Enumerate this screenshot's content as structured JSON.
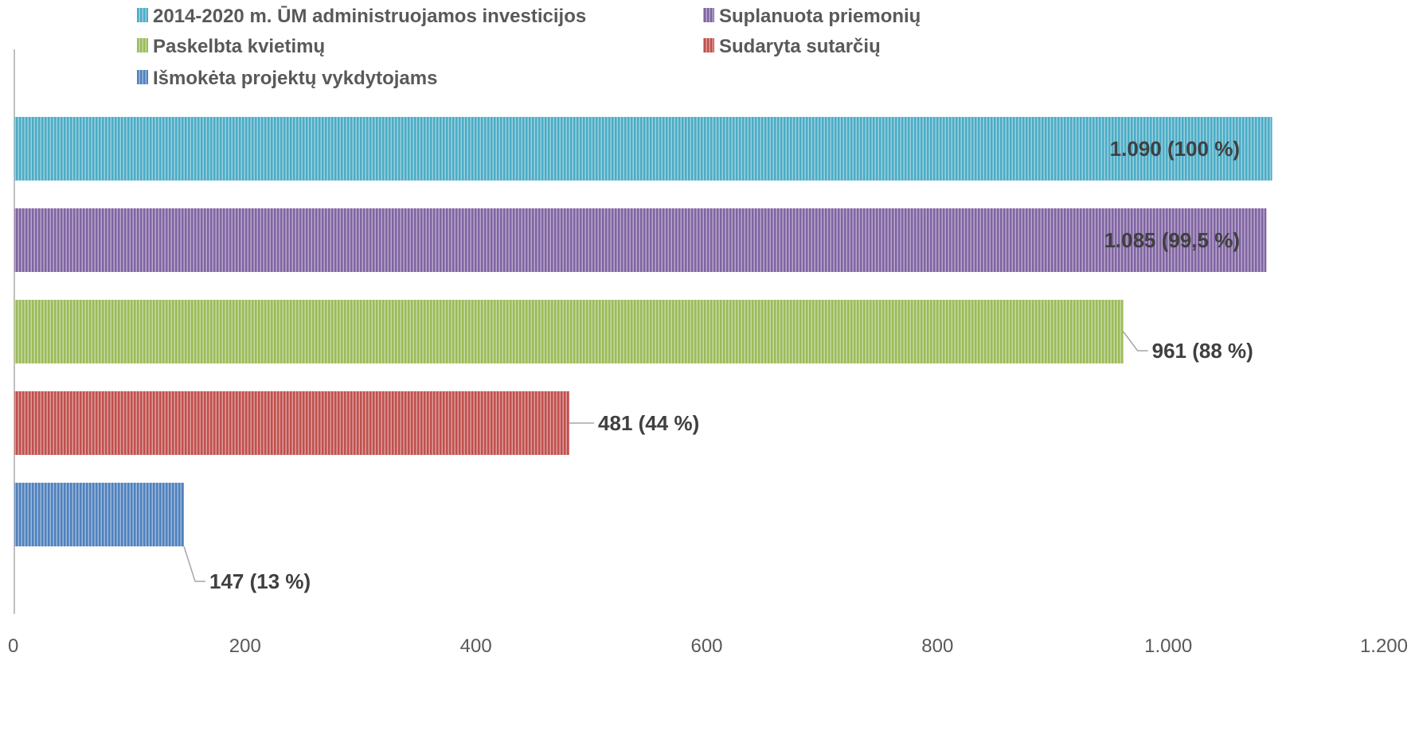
{
  "chart_data": {
    "type": "bar",
    "orientation": "horizontal",
    "title": "",
    "xlabel": "",
    "ylabel": "",
    "xlim": [
      0,
      1200
    ],
    "x_ticks": [
      {
        "value": 0,
        "label": "0"
      },
      {
        "value": 200,
        "label": "200"
      },
      {
        "value": 400,
        "label": "400"
      },
      {
        "value": 600,
        "label": "600"
      },
      {
        "value": 800,
        "label": "800"
      },
      {
        "value": 1000,
        "label": "1.000"
      },
      {
        "value": 1200,
        "label": "1.200"
      }
    ],
    "grid": false,
    "legend_position": "top",
    "series": [
      {
        "name": "2014-2020 m. ŪM administruojamos investicijos",
        "value": 1090,
        "label": "1.090 (100 %)",
        "color": "#4BACC6",
        "stripe": "#ffffff"
      },
      {
        "name": "Suplanuota priemonių",
        "value": 1085,
        "label": "1.085 (99,5 %)",
        "color": "#8064A2",
        "stripe": "#ffffff"
      },
      {
        "name": "Paskelbta kvietimų",
        "value": 961,
        "label": "961 (88 %)",
        "color": "#9BBB59",
        "stripe": "#ffffff"
      },
      {
        "name": "Sudaryta sutarčių",
        "value": 481,
        "label": "481 (44 %)",
        "color": "#C0504D",
        "stripe": "#ffffff"
      },
      {
        "name": "Išmokėta projektų vykdytojams",
        "value": 147,
        "label": "147 (13 %)",
        "color": "#4F81BD",
        "stripe": "#ffffff"
      }
    ]
  }
}
